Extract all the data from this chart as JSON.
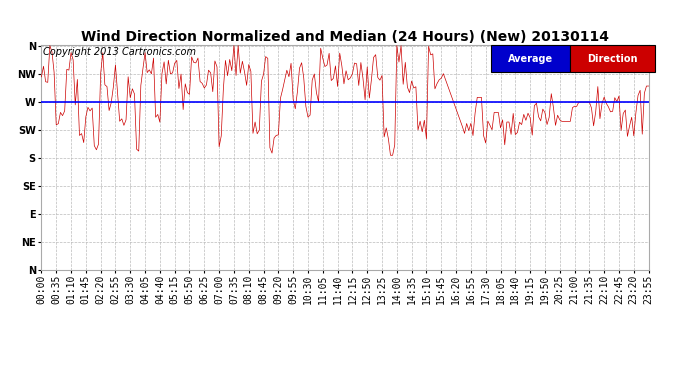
{
  "title": "Wind Direction Normalized and Median (24 Hours) (New) 20130114",
  "copyright": "Copyright 2013 Cartronics.com",
  "legend_avg_color": "#0000cc",
  "legend_dir_color": "#cc0000",
  "ytick_labels": [
    "N",
    "NW",
    "W",
    "SW",
    "S",
    "SE",
    "E",
    "NE",
    "N"
  ],
  "ytick_values": [
    360,
    315,
    270,
    225,
    180,
    135,
    90,
    45,
    0
  ],
  "ylim": [
    0,
    361
  ],
  "avg_line_value": 270,
  "avg_line_color": "#0000ff",
  "data_line_color": "#cc0000",
  "background_color": "#ffffff",
  "plot_bg_color": "#ffffff",
  "grid_color": "#bbbbbb",
  "title_fontsize": 10,
  "copyright_fontsize": 7,
  "tick_fontsize": 7,
  "time_labels": [
    "00:00",
    "00:35",
    "01:10",
    "01:45",
    "02:20",
    "02:55",
    "03:30",
    "04:05",
    "04:40",
    "05:15",
    "05:50",
    "06:25",
    "07:00",
    "07:35",
    "08:10",
    "08:45",
    "09:20",
    "09:55",
    "10:30",
    "11:05",
    "11:40",
    "12:15",
    "12:50",
    "13:25",
    "14:00",
    "14:35",
    "15:10",
    "15:45",
    "16:20",
    "16:55",
    "17:30",
    "18:05",
    "18:40",
    "19:15",
    "19:50",
    "20:25",
    "21:00",
    "21:35",
    "22:10",
    "22:45",
    "23:20",
    "23:55"
  ]
}
